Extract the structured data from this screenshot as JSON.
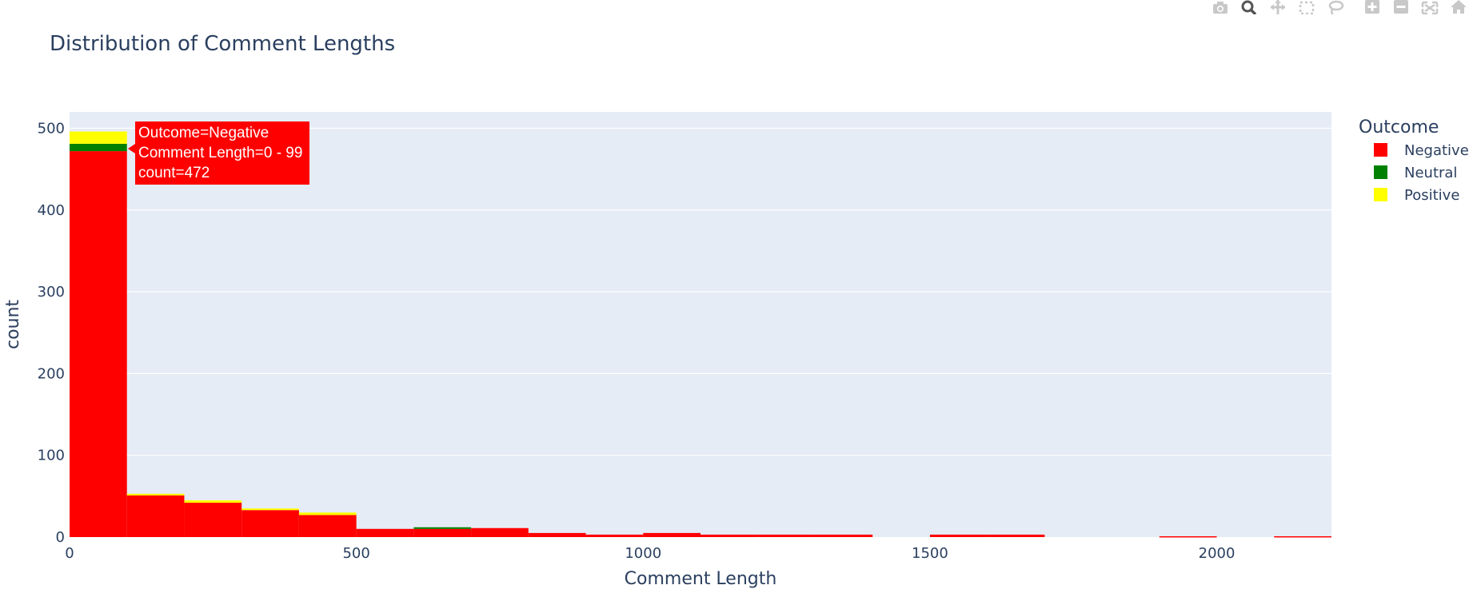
{
  "toolbar": {
    "buttons": [
      {
        "name": "camera-icon"
      },
      {
        "name": "zoom-icon"
      },
      {
        "name": "pan-icon"
      },
      {
        "name": "box-select-icon"
      },
      {
        "name": "lasso-select-icon"
      },
      {
        "name": "zoom-in-icon"
      },
      {
        "name": "zoom-out-icon"
      },
      {
        "name": "autoscale-icon"
      },
      {
        "name": "reset-axes-icon"
      }
    ]
  },
  "chart_data": {
    "type": "bar",
    "title": "Distribution of Comment Lengths",
    "xlabel": "Comment Length",
    "ylabel": "count",
    "xlim": [
      0,
      2200
    ],
    "ylim": [
      0,
      520
    ],
    "xticks": [
      0,
      500,
      1000,
      1500,
      2000
    ],
    "yticks": [
      0,
      100,
      200,
      300,
      400,
      500
    ],
    "grid": true,
    "stacked": true,
    "bin_width": 100,
    "bin_starts": [
      0,
      100,
      200,
      300,
      400,
      500,
      600,
      700,
      800,
      900,
      1000,
      1100,
      1200,
      1300,
      1400,
      1500,
      1600,
      1700,
      1800,
      1900,
      2000,
      2100
    ],
    "legend": {
      "title": "Outcome",
      "position": "right"
    },
    "series": [
      {
        "name": "Negative",
        "color": "#ff0000",
        "values": [
          472,
          51,
          42,
          33,
          27,
          10,
          10,
          11,
          5,
          3,
          5,
          3,
          3,
          3,
          0,
          3,
          3,
          0,
          0,
          1,
          0,
          1
        ]
      },
      {
        "name": "Neutral",
        "color": "#008000",
        "values": [
          9,
          0,
          0,
          0,
          0,
          0,
          2,
          0,
          0,
          0,
          0,
          0,
          0,
          0,
          0,
          0,
          0,
          0,
          0,
          0,
          0,
          0
        ]
      },
      {
        "name": "Positive",
        "color": "#ffff00",
        "values": [
          15,
          2,
          3,
          2,
          3,
          0,
          0,
          0,
          0,
          0,
          0,
          0,
          0,
          0,
          0,
          0,
          0,
          0,
          0,
          0,
          0,
          0
        ]
      }
    ],
    "hover": {
      "lines": [
        "Outcome=Negative",
        "Comment Length=0 - 99",
        "count=472"
      ],
      "color": "#ff0000"
    }
  }
}
